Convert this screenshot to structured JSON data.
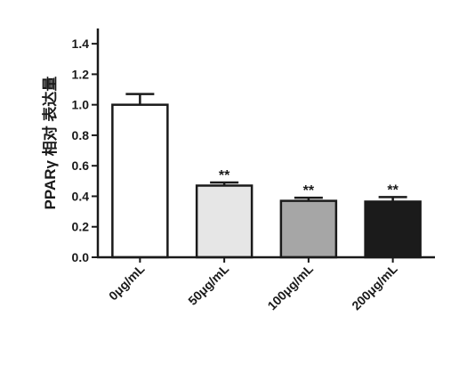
{
  "chart_data": {
    "type": "bar",
    "title": "",
    "xlabel": "",
    "ylabel": "PPARγ 相对 表达量",
    "ylim": [
      0,
      1.5
    ],
    "yticks": [
      "0.0",
      "0.2",
      "0.4",
      "0.6",
      "0.8",
      "1.0",
      "1.2",
      "1.4"
    ],
    "categories": [
      "0μg/mL",
      "50μg/mL",
      "100μg/mL",
      "200μg/mL"
    ],
    "values": [
      1.0,
      0.47,
      0.37,
      0.365
    ],
    "errors": [
      0.07,
      0.02,
      0.02,
      0.03
    ],
    "significance": [
      "",
      "**",
      "**",
      "**"
    ],
    "bar_colors": [
      "#ffffff",
      "#e6e6e6",
      "#a6a6a6",
      "#1b1b1b"
    ],
    "edge_color": "#1a1a1a",
    "grid": false,
    "legend": "none"
  }
}
